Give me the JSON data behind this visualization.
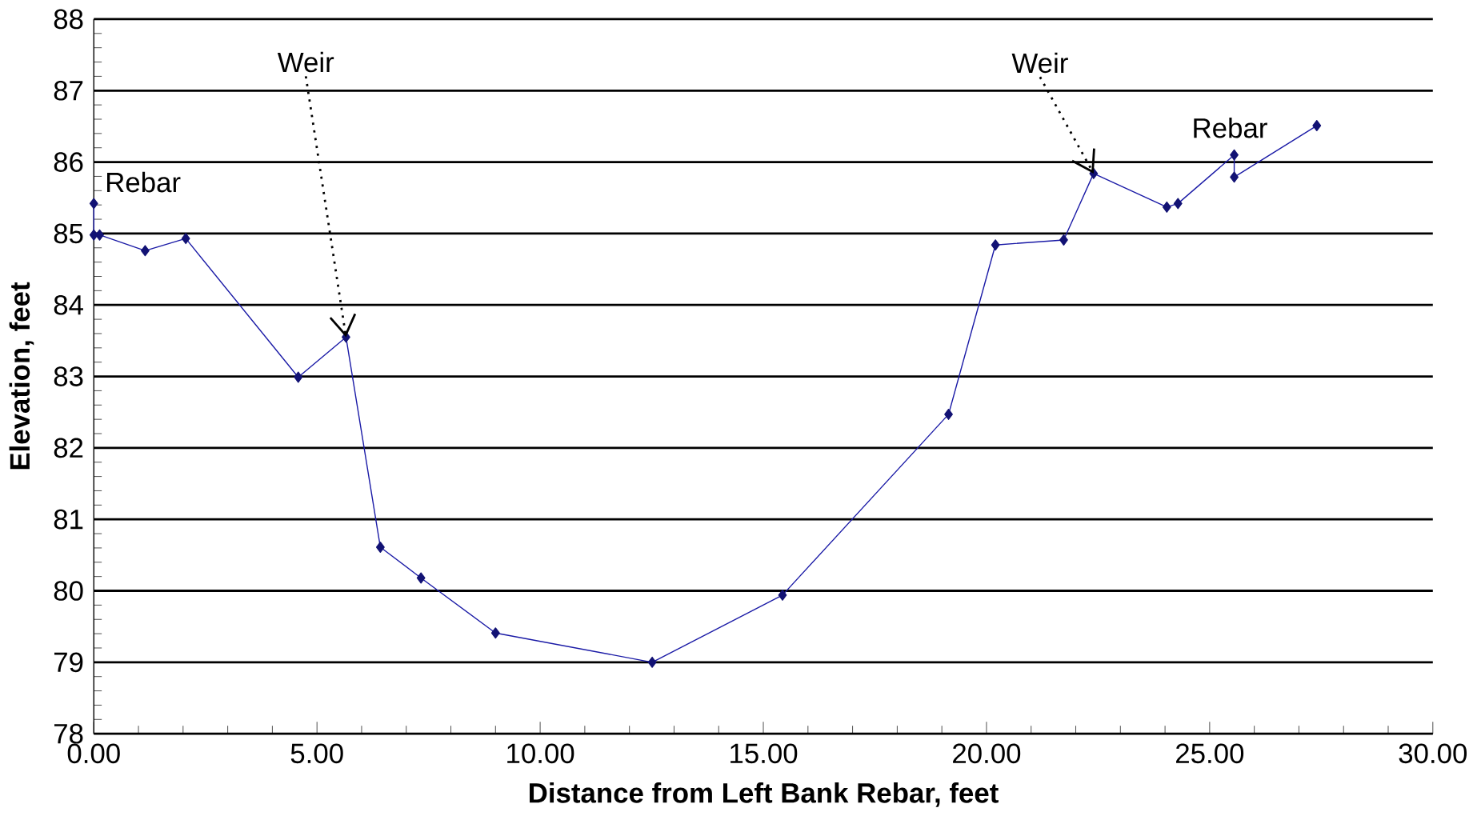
{
  "chart_data": {
    "type": "line",
    "xlabel": "Distance from Left Bank Rebar, feet",
    "ylabel": "Elevation, feet",
    "x": [
      0,
      0,
      0.13,
      1.15,
      2.06,
      4.58,
      5.65,
      6.42,
      7.33,
      9.0,
      12.51,
      15.43,
      19.15,
      20.2,
      21.73,
      22.4,
      24.04,
      24.29,
      25.55,
      25.55,
      27.4
    ],
    "series": [
      {
        "color": "#1a1aa6",
        "values": [
          85.42,
          84.98,
          84.98,
          84.76,
          84.93,
          82.99,
          83.55,
          80.61,
          80.18,
          79.41,
          79.0,
          79.94,
          82.47,
          84.84,
          84.91,
          85.84,
          85.37,
          85.42,
          86.1,
          85.79,
          86.51
        ]
      }
    ],
    "xlim": [
      0,
      30
    ],
    "ylim": [
      78,
      88
    ],
    "xticks": [
      {
        "value": 0,
        "label": "0.00"
      },
      {
        "value": 5,
        "label": "5.00"
      },
      {
        "value": 10,
        "label": "10.00"
      },
      {
        "value": 15,
        "label": "15.00"
      },
      {
        "value": 20,
        "label": "20.00"
      },
      {
        "value": 25,
        "label": "25.00"
      },
      {
        "value": 30,
        "label": "30.00"
      }
    ],
    "yticks": [
      78,
      79,
      80,
      81,
      82,
      83,
      84,
      85,
      86,
      87,
      88
    ],
    "grid": "y",
    "marker": "diamond",
    "line_style": "solid",
    "annotations": [
      {
        "text": "Weir",
        "x": 5.65,
        "y": 83.55
      },
      {
        "text": "Weir",
        "x": 22.4,
        "y": 85.84
      },
      {
        "text": "Rebar",
        "x": 0,
        "y": 85.42
      },
      {
        "text": "Rebar",
        "x": 25.55,
        "y": 86.1
      }
    ]
  }
}
